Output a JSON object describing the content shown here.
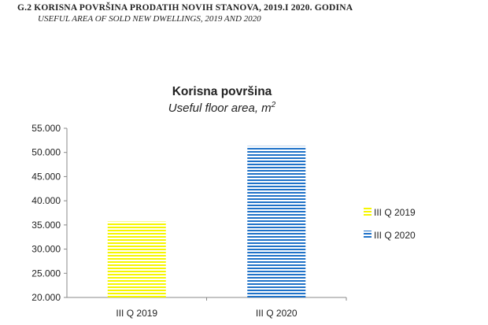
{
  "header": {
    "title": "G.2 KORISNA POVRŠINA PRODATIH NOVIH STANOVA,  2019.I 2020. GODINA",
    "subtitle": "USEFUL  AREA OF SOLD NEW DWELLINGS, 2019 AND 2020"
  },
  "chart_data": {
    "type": "bar",
    "title": "Korisna površina",
    "subtitle": "Useful floor area, m",
    "subtitle_superscript": "2",
    "categories": [
      "III Q 2019",
      "III Q 2020"
    ],
    "series": [
      {
        "name": "III Q 2019",
        "values": [
          35700,
          null
        ],
        "color": "#f6f600",
        "pattern": "horizontal-stripes"
      },
      {
        "name": "III Q 2020",
        "values": [
          null,
          51300
        ],
        "color": "#1f72c8",
        "pattern": "horizontal-stripes"
      }
    ],
    "ylim": [
      20000,
      55000
    ],
    "yticks": [
      {
        "value": 20000,
        "label": "20.000"
      },
      {
        "value": 25000,
        "label": "25.000"
      },
      {
        "value": 30000,
        "label": "30.000"
      },
      {
        "value": 35000,
        "label": "35.000"
      },
      {
        "value": 40000,
        "label": "40.000"
      },
      {
        "value": 45000,
        "label": "45.000"
      },
      {
        "value": 50000,
        "label": "50.000"
      },
      {
        "value": 55000,
        "label": "55.000"
      }
    ],
    "grid": false,
    "legend_position": "right"
  }
}
